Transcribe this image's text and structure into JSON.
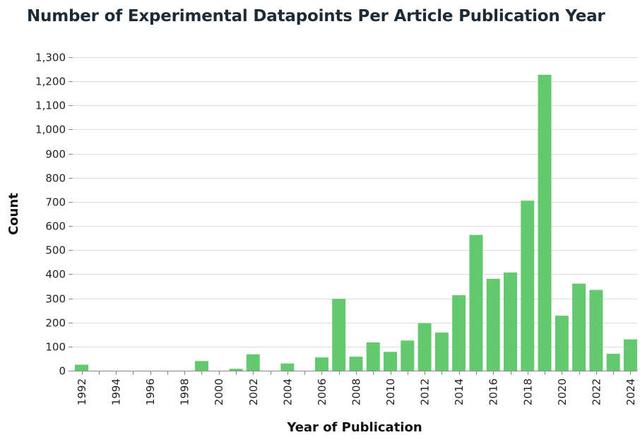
{
  "chart_data": {
    "type": "bar",
    "title": "Number of Experimental Datapoints Per Article Publication Year",
    "xlabel": "Year of Publication",
    "ylabel": "Count",
    "ylim": [
      0,
      1300
    ],
    "y_ticks": [
      0,
      100,
      200,
      300,
      400,
      500,
      600,
      700,
      800,
      900,
      1000,
      1100,
      1200,
      1300
    ],
    "y_tick_labels": [
      "0",
      "100",
      "200",
      "300",
      "400",
      "500",
      "600",
      "700",
      "800",
      "900",
      "1,000",
      "1,100",
      "1,200",
      "1,300"
    ],
    "x_tick_labels": [
      "1992",
      "1994",
      "1996",
      "1998",
      "2000",
      "2002",
      "2004",
      "2006",
      "2008",
      "2010",
      "2012",
      "2014",
      "2016",
      "2018",
      "2020",
      "2022",
      "2024"
    ],
    "categories": [
      1992,
      1993,
      1994,
      1995,
      1996,
      1997,
      1998,
      1999,
      2000,
      2001,
      2002,
      2003,
      2004,
      2005,
      2006,
      2007,
      2008,
      2009,
      2010,
      2011,
      2012,
      2013,
      2014,
      2015,
      2016,
      2017,
      2018,
      2019,
      2020,
      2021,
      2022,
      2023,
      2024
    ],
    "values": [
      25,
      0,
      0,
      0,
      0,
      0,
      0,
      40,
      0,
      8,
      68,
      0,
      30,
      0,
      55,
      298,
      58,
      117,
      78,
      125,
      197,
      158,
      313,
      563,
      381,
      407,
      705,
      1227,
      228,
      361,
      335,
      70,
      130
    ],
    "grid": true,
    "bar_color": "#63c96f"
  }
}
